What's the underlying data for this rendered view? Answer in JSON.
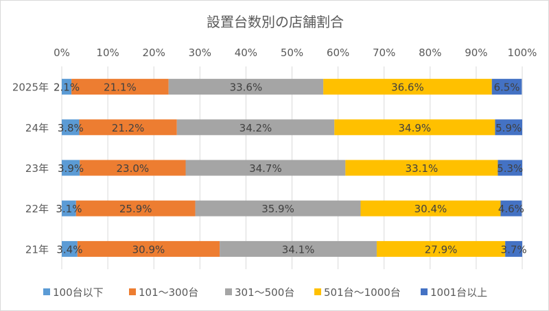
{
  "chart_data": {
    "type": "bar",
    "orientation": "horizontal",
    "stacked": "percent",
    "title": "設置台数別の店舗割合",
    "xlabel": "",
    "ylabel": "",
    "xlim": [
      0,
      100
    ],
    "x_ticks": [
      "0%",
      "10%",
      "20%",
      "30%",
      "40%",
      "50%",
      "60%",
      "70%",
      "80%",
      "90%",
      "100%"
    ],
    "categories": [
      "2025年",
      "24年",
      "23年",
      "22年",
      "21年"
    ],
    "grid": true,
    "legend_position": "bottom",
    "series": [
      {
        "name": "100台以下",
        "color": "#5B9BD5",
        "values": [
          2.1,
          3.8,
          3.9,
          3.1,
          3.4
        ]
      },
      {
        "name": "101～300台",
        "color": "#ED7D31",
        "values": [
          21.1,
          21.2,
          23.0,
          25.9,
          30.9
        ]
      },
      {
        "name": "301～500台",
        "color": "#A5A5A5",
        "values": [
          33.6,
          34.2,
          34.7,
          35.9,
          34.1
        ]
      },
      {
        "name": "501台～1000台",
        "color": "#FFC000",
        "values": [
          36.6,
          34.9,
          33.1,
          30.4,
          27.9
        ]
      },
      {
        "name": "1001台以上",
        "color": "#4472C4",
        "values": [
          6.5,
          5.9,
          5.3,
          4.6,
          3.7
        ]
      }
    ]
  }
}
